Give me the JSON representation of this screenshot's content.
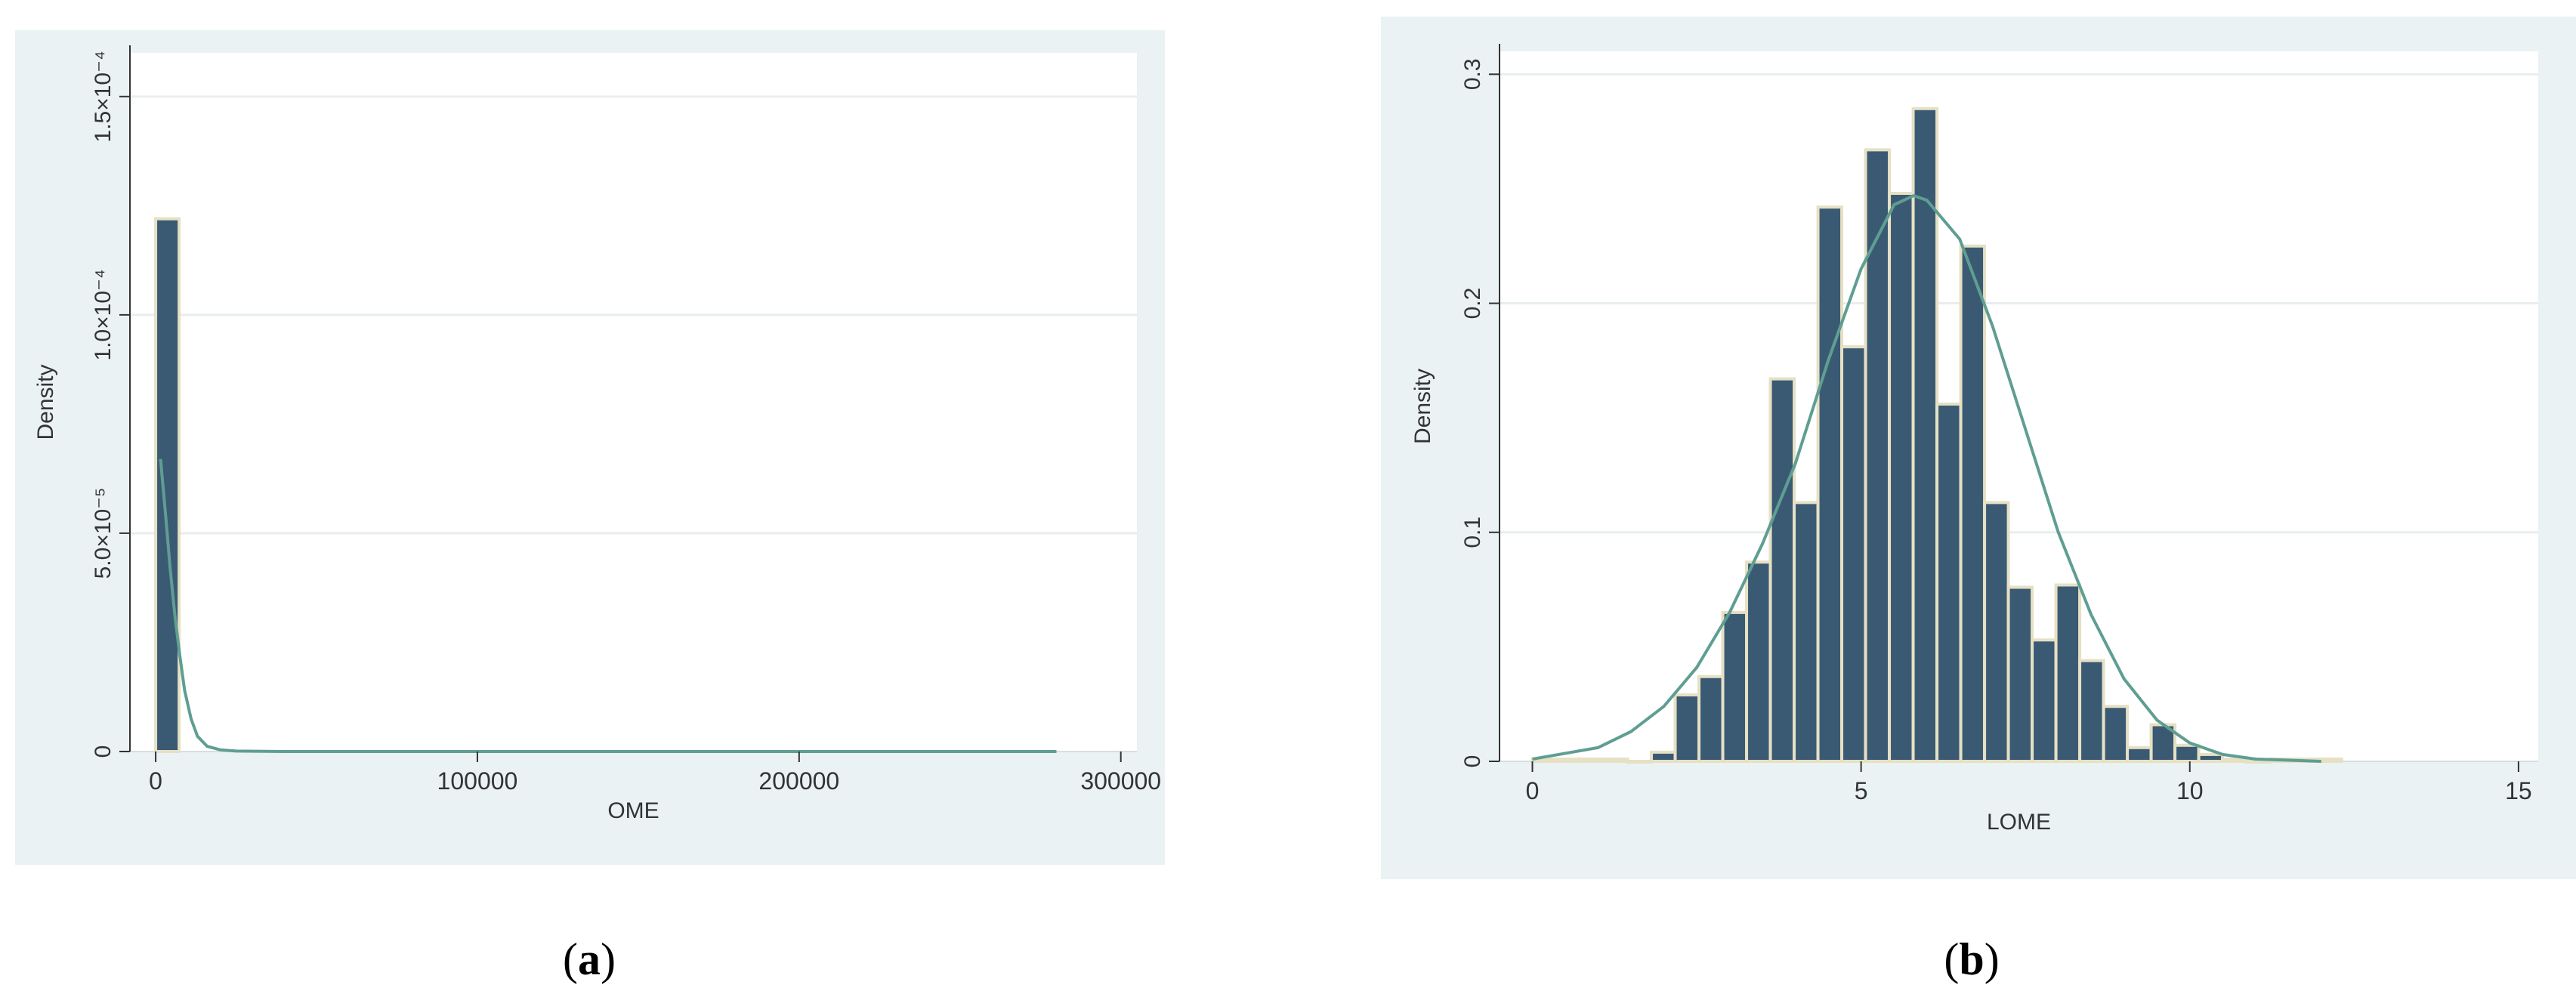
{
  "chart_data": [
    {
      "type": "bar",
      "panel_caption": "(a)",
      "caption_letter": "a",
      "xlabel": "OME",
      "ylabel": "Density",
      "xlim": [
        -8000,
        305000
      ],
      "ylim": [
        0,
        0.00016
      ],
      "x_ticks": [
        0,
        100000,
        200000,
        300000
      ],
      "x_tick_labels": [
        "0",
        "100000",
        "200000",
        "300000"
      ],
      "y_ticks": [
        0,
        5e-05,
        0.0001,
        0.00015
      ],
      "y_tick_labels": [
        "0",
        "5.0×10⁻⁵",
        "1.0×10⁻⁴",
        "1.5×10⁻⁴"
      ],
      "grid": true,
      "bars": [
        {
          "x0": 0,
          "x1": 7300,
          "value": 0.000122
        }
      ],
      "density_curve": {
        "x": [
          1500,
          3000,
          4500,
          6000,
          7500,
          9000,
          11000,
          13000,
          16000,
          20000,
          25000,
          40000,
          100000,
          200000,
          280000
        ],
        "y": [
          6.7e-05,
          5.5e-05,
          4.2e-05,
          3.1e-05,
          2.2e-05,
          1.4e-05,
          7.5e-06,
          3.5e-06,
          1.2e-06,
          4e-07,
          1e-07,
          0,
          0,
          0,
          0
        ]
      },
      "colors": {
        "bar": "#3a5a74",
        "bar_edge": "#e6e0c4",
        "curve": "#5f9e92",
        "grid": "#e8eef0",
        "panel_bg": "#eaf2f3"
      }
    },
    {
      "type": "bar",
      "panel_caption": "(b)",
      "caption_letter": "b",
      "xlabel": "LOME",
      "ylabel": "Density",
      "xlim": [
        -0.5,
        15.3
      ],
      "ylim": [
        0,
        0.31
      ],
      "x_ticks": [
        0,
        5,
        10,
        15
      ],
      "x_tick_labels": [
        "0",
        "5",
        "10",
        "15"
      ],
      "y_ticks": [
        0,
        0.1,
        0.2,
        0.3
      ],
      "y_tick_labels": [
        "0",
        "0.1",
        "0.2",
        "0.3"
      ],
      "grid": true,
      "bin_width": 0.362,
      "bin_start": 0,
      "bin_values": [
        0.001,
        0.001,
        0.001,
        0.001,
        0.0,
        0.004,
        0.029,
        0.037,
        0.065,
        0.087,
        0.167,
        0.113,
        0.242,
        0.181,
        0.267,
        0.248,
        0.285,
        0.156,
        0.225,
        0.113,
        0.076,
        0.053,
        0.077,
        0.044,
        0.024,
        0.006,
        0.016,
        0.007,
        0.003,
        0.001,
        0.0,
        0.001,
        0.001,
        0.001
      ],
      "density_curve": {
        "x": [
          0,
          1,
          1.5,
          2,
          2.5,
          3,
          3.5,
          4,
          4.5,
          5,
          5.5,
          5.8,
          6,
          6.5,
          7,
          7.5,
          8,
          8.5,
          9,
          9.5,
          10,
          10.5,
          11,
          12
        ],
        "y": [
          0.001,
          0.006,
          0.013,
          0.024,
          0.041,
          0.065,
          0.095,
          0.13,
          0.175,
          0.215,
          0.243,
          0.247,
          0.245,
          0.228,
          0.19,
          0.145,
          0.1,
          0.064,
          0.036,
          0.018,
          0.008,
          0.003,
          0.001,
          0.0
        ]
      },
      "colors": {
        "bar": "#3a5a74",
        "bar_edge": "#e6e0c4",
        "curve": "#5f9e92",
        "grid": "#e8eef0",
        "panel_bg": "#eaf2f3"
      }
    }
  ]
}
